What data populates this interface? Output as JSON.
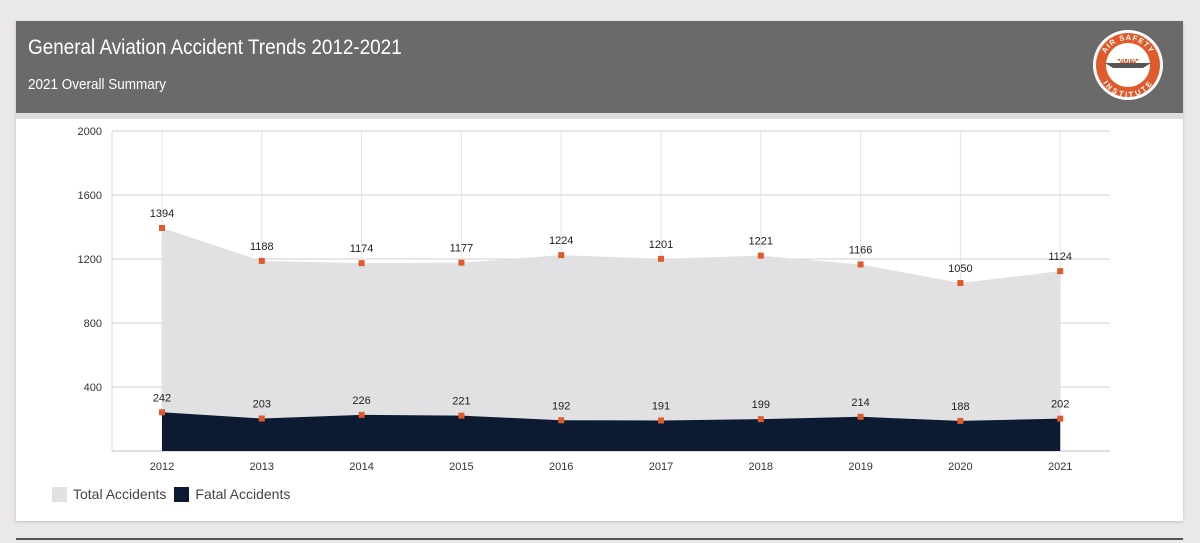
{
  "header": {
    "title": "General Aviation Accident Trends 2012-2021",
    "subtitle": "2021 Overall Summary",
    "logo_text": {
      "top": "AIR SAFETY",
      "middle": "AOPA",
      "bottom": "INSTITUTE"
    }
  },
  "colors": {
    "banner": "#6a6a6a",
    "total_area": "#e1e1e3",
    "fatal_area": "#0c1b32",
    "marker": "#e05a2b",
    "grid": "#cfcfcf"
  },
  "chart_data": {
    "type": "area",
    "categories": [
      "2012",
      "2013",
      "2014",
      "2015",
      "2016",
      "2017",
      "2018",
      "2019",
      "2020",
      "2021"
    ],
    "ylim": [
      0,
      2000
    ],
    "yticks": [
      400,
      800,
      1200,
      1600,
      2000
    ],
    "grid": true,
    "legend_position": "bottom-left",
    "series": [
      {
        "name": "Total Accidents",
        "values": [
          1394,
          1188,
          1174,
          1177,
          1224,
          1201,
          1221,
          1166,
          1050,
          1124
        ]
      },
      {
        "name": "Fatal Accidents",
        "values": [
          242,
          203,
          226,
          221,
          192,
          191,
          199,
          214,
          188,
          202
        ]
      }
    ]
  }
}
